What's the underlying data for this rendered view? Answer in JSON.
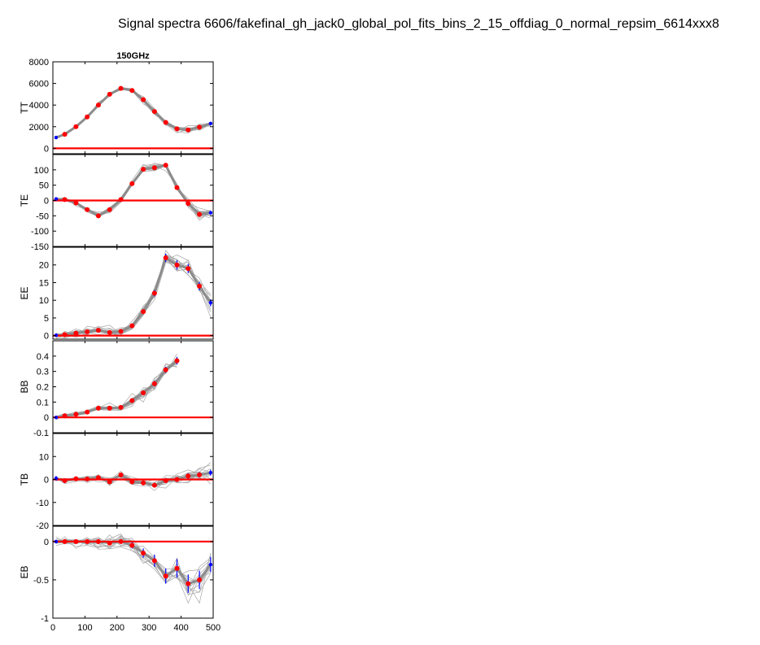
{
  "figure": {
    "suptitle": "Signal spectra 6606/fakefinal_gh_jack0_global_pol_fits_bins_2_15_offdiag_0_normal_repsim_6614xxx8",
    "column_title": "150GHz"
  },
  "colors": {
    "sim_lines": "#a6a6a6",
    "sim_band": "#8c8c8c",
    "real_points": "#ff0000",
    "excluded_points": "#0000ff",
    "errorbars": "#0000ff",
    "zero_line": "#ff0000"
  },
  "chart_data": [
    {
      "type": "line",
      "ylabel": "TT",
      "xlim": [
        0,
        500
      ],
      "ylim": [
        -500,
        8000
      ],
      "xticks": [],
      "yticks": [
        0,
        2000,
        4000,
        6000,
        8000
      ],
      "ytick_labels": [
        "0",
        "2000",
        "4000",
        "6000",
        "8000"
      ],
      "sim_spread": 120,
      "ell": [
        10,
        37,
        72,
        107,
        142,
        177,
        212,
        247,
        282,
        317,
        352,
        387,
        422,
        457,
        492
      ],
      "values": [
        1000,
        1300,
        2000,
        2900,
        4000,
        5000,
        5550,
        5350,
        4500,
        3400,
        2400,
        1800,
        1700,
        1950,
        2300
      ],
      "errors": [
        60,
        60,
        70,
        80,
        90,
        100,
        110,
        110,
        100,
        90,
        80,
        70,
        70,
        70,
        80
      ],
      "excluded": [
        0,
        14
      ],
      "zero_line": 0
    },
    {
      "type": "line",
      "ylabel": "TE",
      "xlim": [
        0,
        500
      ],
      "ylim": [
        -150,
        150
      ],
      "xticks": [],
      "yticks": [
        -150,
        -100,
        -50,
        0,
        50,
        100
      ],
      "ytick_labels": [
        "-150",
        "-100",
        "-50",
        "0",
        "50",
        "100"
      ],
      "sim_spread": 6,
      "ell": [
        10,
        37,
        72,
        107,
        142,
        177,
        212,
        247,
        282,
        317,
        352,
        387,
        422,
        457,
        492
      ],
      "values": [
        5,
        3,
        -8,
        -30,
        -50,
        -30,
        3,
        55,
        102,
        107,
        115,
        42,
        -10,
        -45,
        -40
      ],
      "errors": [
        4,
        4,
        4,
        4,
        5,
        5,
        5,
        6,
        7,
        7,
        7,
        6,
        6,
        6,
        6
      ],
      "excluded": [
        0,
        14
      ],
      "zero_line": 0
    },
    {
      "type": "line",
      "ylabel": "EE",
      "xlim": [
        0,
        500
      ],
      "ylim": [
        -1,
        25
      ],
      "xticks": [],
      "yticks": [
        0,
        5,
        10,
        15,
        20
      ],
      "ytick_labels": [
        "0",
        "5",
        "10",
        "15",
        "20"
      ],
      "sim_spread": 0.9,
      "ell": [
        10,
        37,
        72,
        107,
        142,
        177,
        212,
        247,
        282,
        317,
        352,
        387,
        422,
        457,
        492
      ],
      "values": [
        0.1,
        0.3,
        0.7,
        1.1,
        1.5,
        0.9,
        1.2,
        2.8,
        6.8,
        12.0,
        22.0,
        20.0,
        19.0,
        14.0,
        9.3
      ],
      "errors": [
        0.1,
        0.2,
        0.2,
        0.3,
        0.3,
        0.3,
        0.4,
        0.5,
        0.7,
        0.9,
        1.2,
        1.3,
        1.3,
        1.2,
        1.0
      ],
      "excluded": [
        0,
        14
      ],
      "zero_line": 0
    },
    {
      "type": "line",
      "ylabel": "BB",
      "xlim": [
        0,
        500
      ],
      "ylim": [
        -0.1,
        0.5
      ],
      "xticks": [],
      "yticks": [
        -0.1,
        0,
        0.1,
        0.2,
        0.3,
        0.4
      ],
      "ytick_labels": [
        "-0.1",
        "0",
        "0.1",
        "0.2",
        "0.3",
        "0.4"
      ],
      "sim_spread": 0.015,
      "ell": [
        10,
        37,
        72,
        107,
        142,
        177,
        212,
        247,
        282,
        317,
        352,
        387
      ],
      "values": [
        0.0,
        0.01,
        0.02,
        0.035,
        0.06,
        0.06,
        0.065,
        0.11,
        0.16,
        0.22,
        0.31,
        0.37
      ],
      "errors": [
        0.005,
        0.005,
        0.006,
        0.007,
        0.008,
        0.009,
        0.01,
        0.012,
        0.014,
        0.018,
        0.02,
        0.025
      ],
      "excluded": [
        0
      ],
      "zero_line": 0
    },
    {
      "type": "line",
      "ylabel": "TB",
      "xlim": [
        0,
        500
      ],
      "ylim": [
        -20,
        20
      ],
      "xticks": [],
      "yticks": [
        -20,
        -10,
        0,
        10
      ],
      "ytick_labels": [
        "-20",
        "-10",
        "0",
        "10"
      ],
      "sim_spread": 1.2,
      "ell": [
        10,
        37,
        72,
        107,
        142,
        177,
        212,
        247,
        282,
        317,
        352,
        387,
        422,
        457,
        492
      ],
      "values": [
        0.5,
        -0.5,
        0.3,
        0.2,
        0.8,
        -1.0,
        2.0,
        -1.0,
        -1.5,
        -2.5,
        -0.5,
        0.0,
        1.5,
        2.0,
        3.0
      ],
      "errors": [
        1.0,
        1.0,
        1.0,
        1.0,
        1.0,
        1.0,
        1.0,
        1.0,
        1.0,
        1.0,
        1.0,
        1.0,
        1.2,
        1.2,
        1.3
      ],
      "excluded": [
        0,
        14
      ],
      "zero_line": 0
    },
    {
      "type": "line",
      "ylabel": "EB",
      "xlim": [
        0,
        500
      ],
      "ylim": [
        -1,
        0.2
      ],
      "xticks": [
        0,
        100,
        200,
        300,
        400,
        500
      ],
      "xtick_labels": [
        "0",
        "100",
        "200",
        "300",
        "400",
        "500"
      ],
      "yticks": [
        -1,
        -0.5,
        0
      ],
      "ytick_labels": [
        "-1",
        "-0.5",
        "0"
      ],
      "sim_spread": 0.06,
      "ell": [
        10,
        37,
        72,
        107,
        142,
        177,
        212,
        247,
        282,
        317,
        352,
        387,
        422,
        457,
        492
      ],
      "values": [
        0.0,
        0.0,
        0.0,
        0.0,
        0.0,
        -0.02,
        0.0,
        -0.05,
        -0.15,
        -0.25,
        -0.45,
        -0.35,
        -0.55,
        -0.5,
        -0.3
      ],
      "errors": [
        0.02,
        0.02,
        0.02,
        0.02,
        0.03,
        0.03,
        0.03,
        0.04,
        0.06,
        0.08,
        0.1,
        0.12,
        0.12,
        0.12,
        0.1
      ],
      "excluded": [
        0,
        14
      ],
      "zero_line": 0
    }
  ]
}
